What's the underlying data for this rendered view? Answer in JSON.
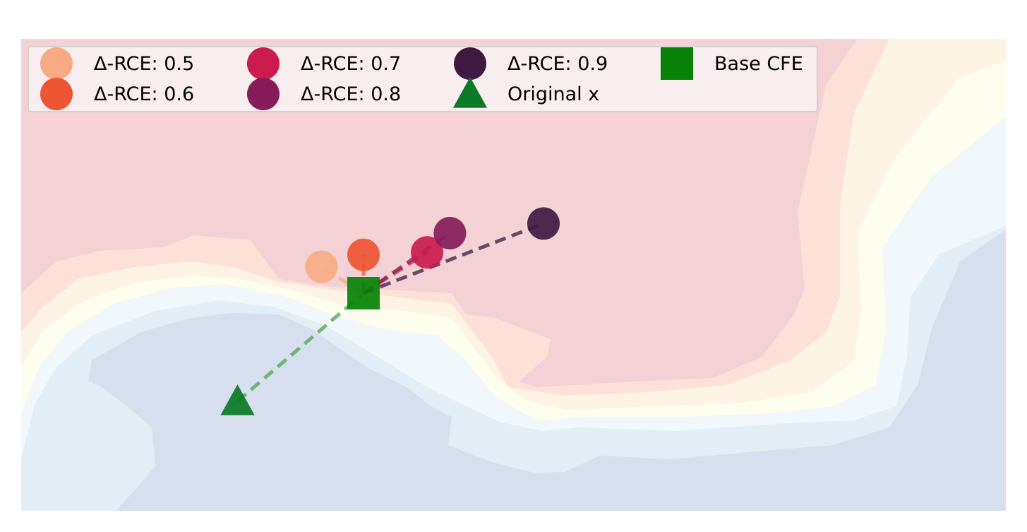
{
  "chart_data": {
    "type": "scatter",
    "title": "",
    "xlabel": "",
    "ylabel": "",
    "axes_visible": false,
    "grid": false,
    "legend_placement": "upper-left",
    "legend_columns": 4,
    "background": "decision-boundary filled contours, red region above the curved boundary, blue region below",
    "contour_colors": [
      "#f3d1d4",
      "#fde1d9",
      "#fdf4e3",
      "#fefeef",
      "#f2f7fb",
      "#e2edf5",
      "#d7dfee"
    ],
    "series": [
      {
        "name": "Δ-RCE: 0.5",
        "marker": "circle",
        "color": "#f6ab84",
        "x": [
          -0.35
        ],
        "y": [
          0.22
        ]
      },
      {
        "name": "Δ-RCE: 0.6",
        "marker": "circle",
        "color": "#ee5533",
        "x": [
          0.0
        ],
        "y": [
          0.32
        ]
      },
      {
        "name": "Δ-RCE: 0.7",
        "marker": "circle",
        "color": "#cb1b4f",
        "x": [
          0.53
        ],
        "y": [
          0.34
        ]
      },
      {
        "name": "Δ-RCE: 0.8",
        "marker": "circle",
        "color": "#861c5a",
        "x": [
          0.72
        ],
        "y": [
          0.5
        ]
      },
      {
        "name": "Δ-RCE: 0.9",
        "marker": "circle",
        "color": "#3e1a41",
        "x": [
          1.5
        ],
        "y": [
          0.58
        ]
      },
      {
        "name": "Original x",
        "marker": "triangle",
        "color": "#0a7a24",
        "x": [
          -1.05
        ],
        "y": [
          -0.9
        ]
      },
      {
        "name": "Base CFE",
        "marker": "square",
        "color": "#078207",
        "x": [
          0.0
        ],
        "y": [
          0.0
        ]
      }
    ],
    "paths": [
      {
        "from": "Original x",
        "to": "Base CFE",
        "style": "dashed",
        "color": "#4ea652"
      },
      {
        "from": "Base CFE",
        "to": "Δ-RCE: 0.5",
        "style": "dashed",
        "color": "#f6ab84"
      },
      {
        "from": "Base CFE",
        "to": "Δ-RCE: 0.6",
        "style": "dashed",
        "color": "#ee5533"
      },
      {
        "from": "Base CFE",
        "to": "Δ-RCE: 0.7",
        "style": "dashed",
        "color": "#cb1b4f"
      },
      {
        "from": "Base CFE",
        "to": "Δ-RCE: 0.8",
        "style": "dashed",
        "color": "#861c5a"
      },
      {
        "from": "Base CFE",
        "to": "Δ-RCE: 0.9",
        "style": "dashed",
        "color": "#3e1a41"
      }
    ],
    "legend": [
      [
        "Δ-RCE: 0.5",
        "Δ-RCE: 0.6"
      ],
      [
        "Δ-RCE: 0.7",
        "Δ-RCE: 0.8"
      ],
      [
        "Δ-RCE: 0.9",
        "Original x"
      ],
      [
        "Base CFE"
      ]
    ]
  }
}
